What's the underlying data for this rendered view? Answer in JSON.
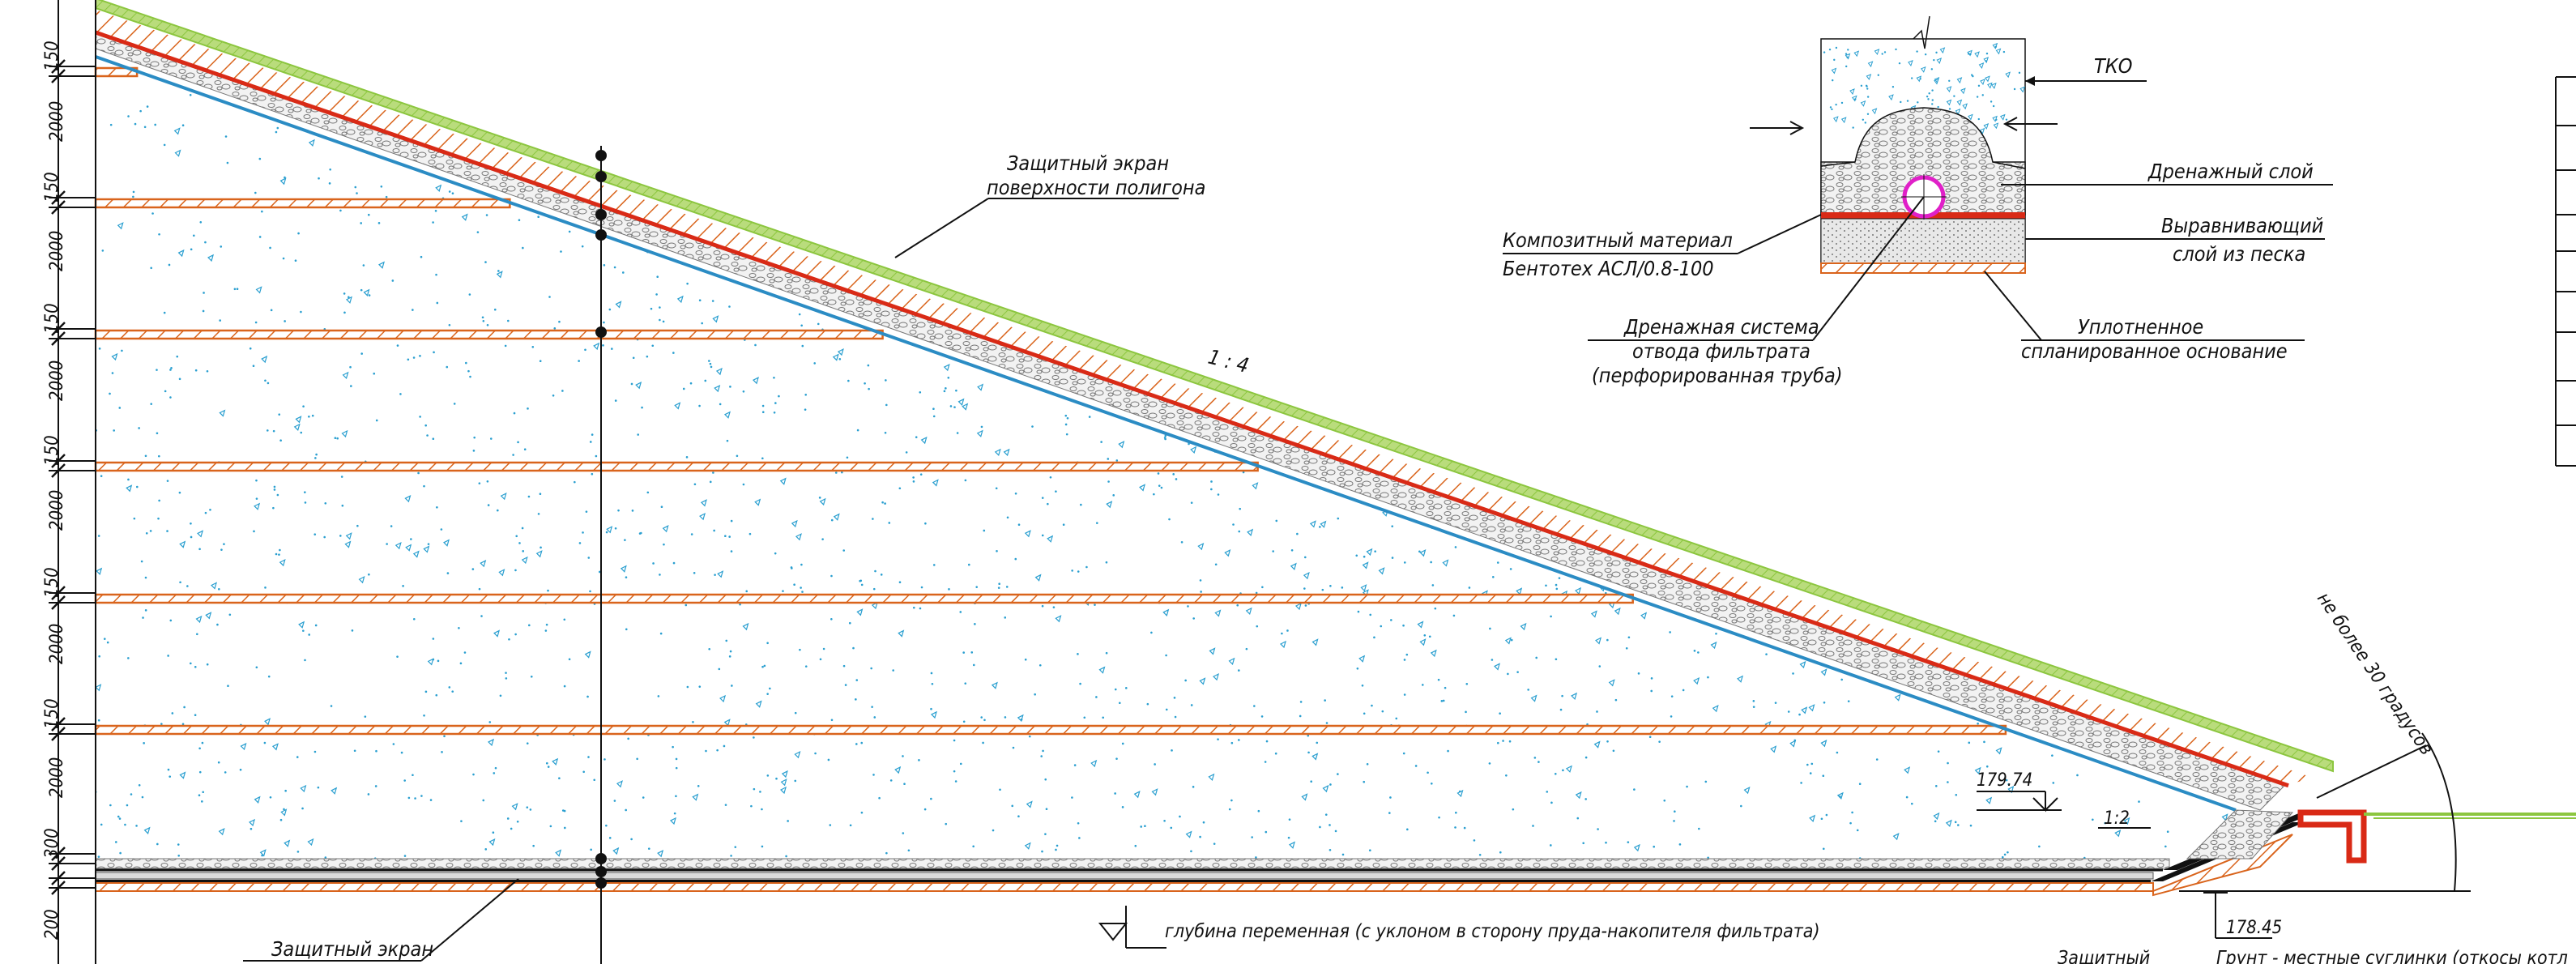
{
  "colors": {
    "waste_fill": "#ffffff",
    "waste_dots": "#2a9fd0",
    "liner_red": "#d92a16",
    "clay_orange": "#d9641c",
    "blue_line": "#2b8cc4",
    "green_cover": "#8cc63f",
    "gravel_grey": "#8a8a8a",
    "pipe_magenta": "#e020c8",
    "line_black": "#111111"
  },
  "left_dimensions": [
    "150",
    "2000",
    "150",
    "2000",
    "150",
    "2000",
    "150",
    "2000",
    "150",
    "2000",
    "150",
    "2000",
    "300",
    "200"
  ],
  "labels": {
    "surface_screen": [
      "Защитный экран",
      "поверхности полигона"
    ],
    "slope": "1 : 4",
    "max_angle": "не более 30 градусов",
    "elev_top": "179.74",
    "elev_bottom": "178.45",
    "slope_small": "1:2",
    "depth_note": "глубина переменная (с уклоном в сторону пруда-накопителя фильтрата)",
    "bottom_screen": "Защитный экран",
    "bottom_screen_right": "Защитный",
    "ground_note": "Грунт - местные суглинки (откосы котл"
  },
  "detail": {
    "tko": "ТКО",
    "drain_layer": "Дренажный слой",
    "levelling": [
      "Выравнивающий",
      "слой из песка"
    ],
    "composite": [
      "Композитный материал",
      "Бентотех АСЛ/0.8-100"
    ],
    "drain_system": [
      "Дренажная система",
      "отвода фильтрата",
      "(перфорированная труба)"
    ],
    "base": [
      "Уплотненное",
      "спланированное основание"
    ]
  }
}
